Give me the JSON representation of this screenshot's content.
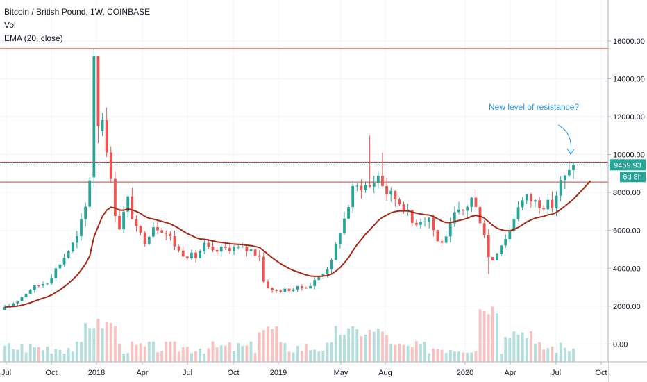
{
  "legend": {
    "symbol": "Bitcoin / British Pound, 1W, COINBASE",
    "vol": "Vol",
    "ema": "EMA (20, close)"
  },
  "annotation": {
    "text": "New level of resistance?"
  },
  "price_label": {
    "value": "9459.93",
    "countdown": "6d 8h"
  },
  "colors": {
    "up": "#26a69a",
    "down": "#ef5350",
    "ema": "#a52714",
    "resistance": "#e53935",
    "annotation": "#2196f3",
    "price_tag": "#26a69a",
    "grid": "#f0f3fa"
  },
  "chart_data": {
    "type": "candlestick",
    "title": "Bitcoin / British Pound, 1W, COINBASE",
    "ylim": [
      -500,
      17500
    ],
    "y_ticks": [
      0,
      2000,
      4000,
      6000,
      8000,
      10000,
      12000,
      14000,
      16000
    ],
    "y_tick_labels": [
      "0.00",
      "2000.00",
      "4000.00",
      "6000.00",
      "8000.00",
      "10000.00",
      "12000.00",
      "14000.00",
      "16000.00"
    ],
    "x_ticks": [
      "Jul",
      "Oct",
      "2018",
      "Apr",
      "Jul",
      "Oct",
      "2019",
      "May",
      "Aug",
      "2020",
      "Apr",
      "Jul",
      "Oct"
    ],
    "horizontal_lines": [
      15600,
      9600,
      8550
    ],
    "current_price": 9459.93,
    "grid": true,
    "ema_period": 20
  }
}
